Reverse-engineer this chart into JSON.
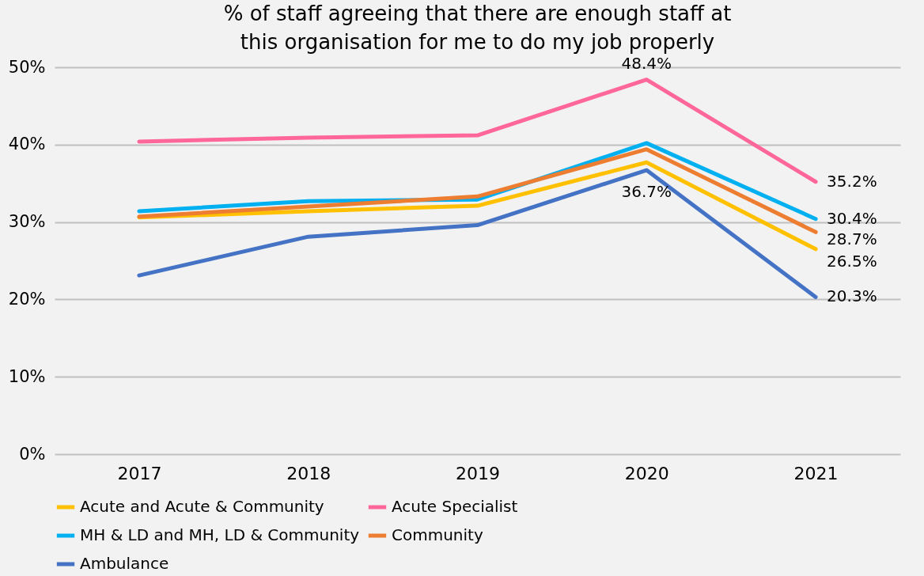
{
  "chart_data": {
    "type": "line",
    "title": "% of staff agreeing that there are enough staff at this organisation for me to do my job properly",
    "categories": [
      "2017",
      "2018",
      "2019",
      "2020",
      "2021"
    ],
    "ylim": [
      0,
      50
    ],
    "yticks": [
      {
        "value": 0,
        "label": "0%"
      },
      {
        "value": 10,
        "label": "10%"
      },
      {
        "value": 20,
        "label": "20%"
      },
      {
        "value": 30,
        "label": "30%"
      },
      {
        "value": 40,
        "label": "40%"
      },
      {
        "value": 50,
        "label": "50%"
      }
    ],
    "grid": "y",
    "legend": "bottom",
    "marker": "none",
    "line_style": "solid",
    "series": [
      {
        "name": "Acute and Acute & Community",
        "color": "#ffc000",
        "values": [
          30.6,
          31.4,
          32.1,
          37.7,
          26.5
        ],
        "value_labels": [
          null,
          null,
          null,
          null,
          "26.5%"
        ]
      },
      {
        "name": "Acute Specialist",
        "color": "#ff6699",
        "values": [
          40.4,
          40.9,
          41.2,
          48.4,
          35.2
        ],
        "value_labels": [
          null,
          null,
          null,
          "48.4%",
          "35.2%"
        ]
      },
      {
        "name": "MH & LD and MH, LD & Community",
        "color": "#00b0f0",
        "values": [
          31.4,
          32.7,
          32.9,
          40.2,
          30.4
        ],
        "value_labels": [
          null,
          null,
          null,
          null,
          "30.4%"
        ]
      },
      {
        "name": "Community",
        "color": "#ed7d31",
        "values": [
          30.7,
          32.0,
          33.3,
          39.4,
          28.7
        ],
        "value_labels": [
          null,
          null,
          null,
          null,
          "28.7%"
        ]
      },
      {
        "name": "Ambulance",
        "color": "#4472c4",
        "values": [
          23.1,
          28.1,
          29.6,
          36.7,
          20.3
        ],
        "value_labels": [
          null,
          null,
          null,
          "36.7%",
          "20.3%"
        ]
      }
    ]
  }
}
